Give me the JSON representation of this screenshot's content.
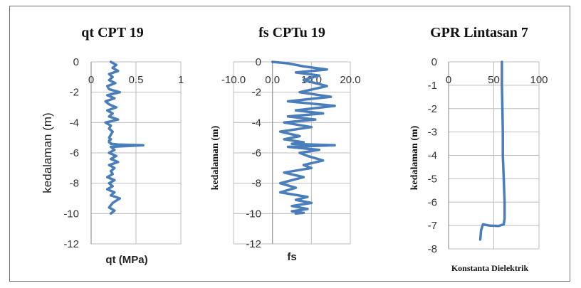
{
  "colors": {
    "series": "#4a7ebb"
  },
  "chart_data": [
    {
      "type": "line",
      "title": "qt CPT 19",
      "xlabel": "qt (MPa)",
      "ylabel": "kedalaman (m)",
      "xlim": [
        0,
        1
      ],
      "ylim": [
        -12,
        0
      ],
      "xticks": [
        0,
        0.5,
        1
      ],
      "xtick_labels": [
        "0",
        "0.5",
        "1"
      ],
      "yticks": [
        0,
        -2,
        -4,
        -6,
        -8,
        -10,
        -12
      ],
      "ytick_labels": [
        "0",
        "-2",
        "-4",
        "-6",
        "-8",
        "-10",
        "-12"
      ],
      "series": [
        {
          "x": [
            0.22,
            0.28,
            0.24,
            0.3,
            0.2,
            0.24,
            0.2,
            0.27,
            0.18,
            0.2,
            0.32,
            0.18,
            0.26,
            0.16,
            0.2,
            0.28,
            0.18,
            0.24,
            0.2,
            0.3,
            0.16,
            0.22,
            0.2,
            0.24,
            0.22,
            0.2,
            0.22,
            0.2,
            0.2,
            0.22,
            0.22,
            0.3,
            0.58,
            0.22,
            0.26,
            0.2,
            0.28,
            0.22,
            0.3,
            0.2,
            0.26,
            0.22,
            0.24,
            0.18,
            0.26,
            0.2,
            0.24,
            0.18,
            0.26,
            0.22,
            0.32,
            0.24,
            0.2,
            0.26,
            0.22
          ],
          "y": [
            0,
            -0.2,
            -0.4,
            -0.6,
            -0.8,
            -1.0,
            -1.2,
            -1.4,
            -1.6,
            -1.8,
            -2.0,
            -2.2,
            -2.4,
            -2.6,
            -2.8,
            -3.0,
            -3.2,
            -3.4,
            -3.6,
            -3.8,
            -4.0,
            -4.2,
            -4.4,
            -4.6,
            -4.8,
            -5.0,
            -5.1,
            -5.2,
            -5.3,
            -5.35,
            -5.4,
            -5.45,
            -5.5,
            -5.6,
            -5.8,
            -6.0,
            -6.2,
            -6.4,
            -6.6,
            -6.8,
            -7.0,
            -7.2,
            -7.4,
            -7.6,
            -7.8,
            -8.0,
            -8.2,
            -8.4,
            -8.6,
            -8.8,
            -9.0,
            -9.3,
            -9.6,
            -9.8,
            -10.0
          ]
        }
      ]
    },
    {
      "type": "line",
      "title": "fs CPTu 19",
      "xlabel": "fs",
      "ylabel": "kedalaman (m)",
      "xlim": [
        -10,
        20
      ],
      "ylim": [
        -12,
        0
      ],
      "xticks": [
        -10,
        0,
        10,
        20
      ],
      "xtick_labels": [
        "-10.0",
        "0.0",
        "10.0",
        "20.0"
      ],
      "yticks": [
        0,
        -2,
        -4,
        -6,
        -8,
        -10,
        -12
      ],
      "ytick_labels": [
        "0",
        "-2",
        "-4",
        "-6",
        "-8",
        "-10",
        "-12"
      ],
      "series": [
        {
          "x": [
            0,
            4,
            8,
            14,
            6,
            12,
            8,
            14,
            7,
            15,
            4,
            16,
            6,
            13,
            4,
            11,
            3,
            10,
            2,
            7,
            3,
            8,
            5,
            16,
            4,
            12,
            7,
            9,
            13,
            8,
            10,
            3,
            8,
            2,
            6,
            2,
            9,
            6,
            10,
            5,
            9,
            5,
            8,
            6
          ],
          "y": [
            0,
            -0.1,
            -0.3,
            -0.5,
            -0.7,
            -0.9,
            -1.2,
            -1.6,
            -2.0,
            -2.3,
            -2.6,
            -2.9,
            -3.2,
            -3.4,
            -3.6,
            -3.8,
            -4.0,
            -4.3,
            -4.6,
            -4.9,
            -5.1,
            -5.3,
            -5.4,
            -5.5,
            -5.6,
            -5.8,
            -6.0,
            -6.2,
            -6.5,
            -6.8,
            -7.0,
            -7.3,
            -7.6,
            -8.0,
            -8.3,
            -8.6,
            -8.9,
            -9.1,
            -9.3,
            -9.5,
            -9.7,
            -9.85,
            -9.95,
            -10.0
          ]
        }
      ]
    },
    {
      "type": "line",
      "title": "GPR Lintasan 7",
      "xlabel": "Konstanta Dielektrik",
      "ylabel": "kedalaman (m)",
      "xlim": [
        0,
        100
      ],
      "ylim": [
        -8,
        0
      ],
      "xticks": [
        0,
        50,
        100
      ],
      "xtick_labels": [
        "0",
        "50",
        "100"
      ],
      "yticks": [
        0,
        -1,
        -2,
        -3,
        -4,
        -5,
        -6,
        -7,
        -8
      ],
      "ytick_labels": [
        "0",
        "-1",
        "-2",
        "-3",
        "-4",
        "-5",
        "-6",
        "-7",
        "-8"
      ],
      "series": [
        {
          "x": [
            59,
            59,
            59.5,
            60,
            60,
            61,
            62,
            62,
            61,
            55,
            45,
            38,
            36,
            35
          ],
          "y": [
            0,
            -1,
            -2,
            -3,
            -4,
            -5,
            -6,
            -6.7,
            -6.95,
            -7.02,
            -7.0,
            -6.95,
            -7.2,
            -7.6
          ]
        }
      ]
    }
  ]
}
